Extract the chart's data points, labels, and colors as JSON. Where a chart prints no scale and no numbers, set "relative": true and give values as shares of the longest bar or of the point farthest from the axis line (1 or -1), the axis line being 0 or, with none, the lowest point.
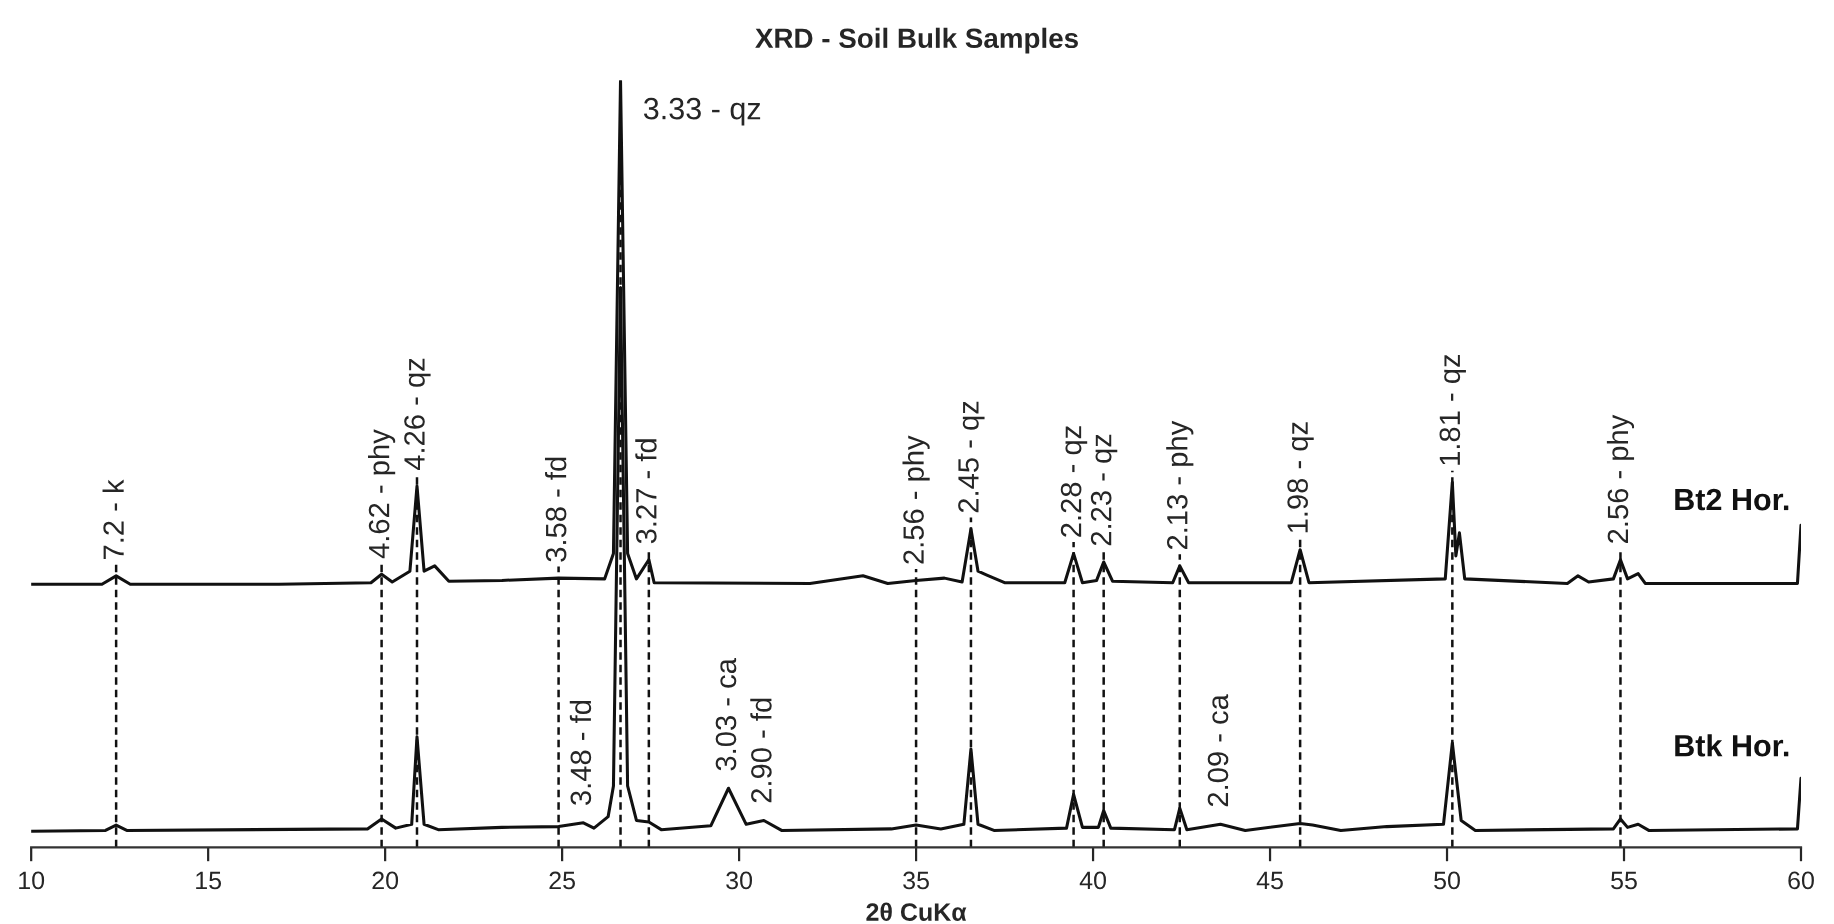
{
  "chart_data": {
    "type": "line",
    "title": "XRD - Soil Bulk Samples",
    "xlabel": "2θ CuKα",
    "relative": true,
    "xlim": [
      10,
      60
    ],
    "xticks": [
      10,
      15,
      20,
      25,
      30,
      35,
      40,
      45,
      50,
      55,
      60
    ],
    "legend": false,
    "grid": false,
    "series": [
      {
        "name": "Bt2 Hor.",
        "color": "#111111",
        "x": [
          10,
          12.0,
          12.4,
          12.8,
          17,
          19.6,
          19.9,
          20.2,
          20.7,
          20.9,
          21.1,
          21.4,
          21.8,
          23.3,
          24.9,
          26.2,
          26.45,
          26.65,
          26.85,
          27.1,
          27.45,
          27.6,
          32,
          33.5,
          34.2,
          35.0,
          35.8,
          36.3,
          36.55,
          36.75,
          37.0,
          37.5,
          39.2,
          39.45,
          39.7,
          40.1,
          40.3,
          40.55,
          42.25,
          42.45,
          42.7,
          45.6,
          45.85,
          46.1,
          49.95,
          50.15,
          50.25,
          50.35,
          50.5,
          53.4,
          53.7,
          54.0,
          54.7,
          54.9,
          55.1,
          55.4,
          55.6,
          59.9,
          60
        ],
        "values": [
          0.343,
          0.343,
          0.354,
          0.343,
          0.343,
          0.345,
          0.356,
          0.346,
          0.36,
          0.471,
          0.36,
          0.367,
          0.347,
          0.348,
          0.351,
          0.35,
          0.383,
          1.0,
          0.383,
          0.35,
          0.375,
          0.345,
          0.344,
          0.354,
          0.344,
          0.348,
          0.351,
          0.346,
          0.415,
          0.36,
          0.355,
          0.345,
          0.345,
          0.383,
          0.345,
          0.348,
          0.372,
          0.347,
          0.345,
          0.367,
          0.345,
          0.345,
          0.388,
          0.345,
          0.35,
          0.476,
          0.38,
          0.41,
          0.35,
          0.344,
          0.354,
          0.346,
          0.35,
          0.375,
          0.35,
          0.357,
          0.344,
          0.344,
          0.42
        ]
      },
      {
        "name": "Btk Hor.",
        "color": "#111111",
        "x": [
          10,
          12.1,
          12.4,
          12.7,
          19.5,
          19.9,
          20.3,
          20.75,
          20.9,
          21.1,
          21.5,
          23.3,
          24.9,
          25.6,
          25.9,
          26.3,
          26.45,
          26.65,
          26.85,
          27.1,
          27.45,
          27.8,
          29.2,
          29.7,
          30.2,
          30.7,
          31.2,
          34.3,
          35.0,
          35.7,
          36.35,
          36.55,
          36.75,
          37.2,
          39.25,
          39.45,
          39.7,
          40.15,
          40.3,
          40.5,
          42.3,
          42.45,
          42.65,
          43.6,
          44.3,
          45.85,
          46.2,
          47,
          48.3,
          49.9,
          50.15,
          50.4,
          50.8,
          54.7,
          54.9,
          55.1,
          55.4,
          55.7,
          59.9,
          60
        ],
        "values": [
          0.021,
          0.022,
          0.029,
          0.022,
          0.024,
          0.037,
          0.025,
          0.03,
          0.144,
          0.03,
          0.023,
          0.026,
          0.027,
          0.032,
          0.025,
          0.04,
          0.08,
          0.73,
          0.08,
          0.035,
          0.033,
          0.023,
          0.028,
          0.077,
          0.03,
          0.035,
          0.022,
          0.024,
          0.029,
          0.024,
          0.03,
          0.128,
          0.03,
          0.022,
          0.025,
          0.069,
          0.026,
          0.026,
          0.048,
          0.025,
          0.023,
          0.051,
          0.023,
          0.03,
          0.022,
          0.031,
          0.029,
          0.022,
          0.027,
          0.03,
          0.136,
          0.035,
          0.022,
          0.024,
          0.037,
          0.026,
          0.03,
          0.022,
          0.024,
          0.09
        ]
      }
    ],
    "ref_lines": [
      {
        "axis": "x",
        "value": 12.4,
        "label": "7.2 - k",
        "line_style": "dashed"
      },
      {
        "axis": "x",
        "value": 19.9,
        "label": "4.62 - phy",
        "line_style": "dashed"
      },
      {
        "axis": "x",
        "value": 20.9,
        "label": "4.26 - qz",
        "line_style": "dashed"
      },
      {
        "axis": "x",
        "value": 24.9,
        "label": "3.58 - fd",
        "line_style": "dashed"
      },
      {
        "axis": "x",
        "value": 26.65,
        "label": null,
        "line_style": "dashed"
      },
      {
        "axis": "x",
        "value": 27.45,
        "label": "3.27 - fd",
        "line_style": "dashed"
      },
      {
        "axis": "x",
        "value": 35.0,
        "label": "2.56 - phy",
        "line_style": "dashed"
      },
      {
        "axis": "x",
        "value": 36.55,
        "label": "2.45 - qz",
        "line_style": "dashed"
      },
      {
        "axis": "x",
        "value": 39.45,
        "label": "2.28 - qz",
        "line_style": "dashed"
      },
      {
        "axis": "x",
        "value": 40.3,
        "label": "2.23 - qz",
        "line_style": "dashed"
      },
      {
        "axis": "x",
        "value": 42.45,
        "label": "2.13 - phy",
        "line_style": "dashed"
      },
      {
        "axis": "x",
        "value": 45.85,
        "label": "1.98 - qz",
        "line_style": "dashed"
      },
      {
        "axis": "x",
        "value": 50.15,
        "label": "1.81 - qz",
        "line_style": "dashed"
      },
      {
        "axis": "x",
        "value": 54.9,
        "label": "2.56 - phy",
        "line_style": "dashed"
      }
    ],
    "annotations": [
      {
        "text": "3.33 - qz",
        "x": 26.65,
        "y": 1.0
      },
      {
        "text": "3.48 - fd",
        "x": 25.6,
        "y": 0.032
      },
      {
        "text": "3.03 - ca",
        "x": 29.7,
        "y": 0.077
      },
      {
        "text": "2.90 - fd",
        "x": 30.7,
        "y": 0.035
      },
      {
        "text": "2.09 - ca",
        "x": 43.6,
        "y": 0.03
      }
    ]
  }
}
